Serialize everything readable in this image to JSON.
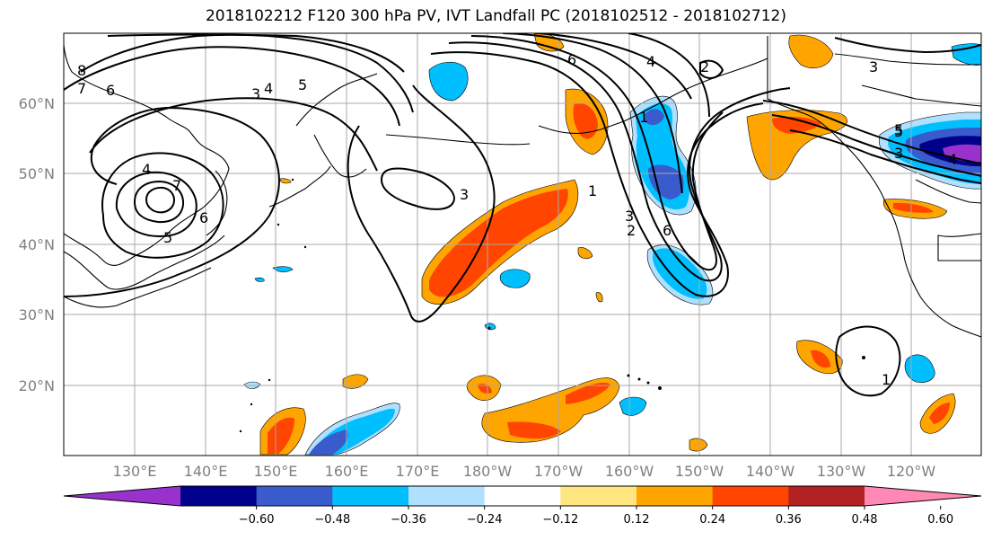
{
  "title": "2018102212 F120 300 hPa PV, IVT Landfall PC (2018102512 - 2018102712)",
  "lat_labels": [
    "60°N",
    "50°N",
    "40°N",
    "30°N",
    "20°N"
  ],
  "lon_labels": [
    "130°E",
    "140°E",
    "150°E",
    "160°E",
    "170°E",
    "180°W",
    "170°W",
    "160°W",
    "150°W",
    "140°W",
    "130°W",
    "120°W"
  ],
  "colorbar": {
    "colors": [
      "#9932cc",
      "#00008b",
      "#3a5bcc",
      "#00bfff",
      "#b0e0ff",
      "#ffffff",
      "#ffe680",
      "#ffa500",
      "#ff4500",
      "#b22222",
      "#ff88b4"
    ],
    "labels": [
      "-0.60",
      "-0.48",
      "-0.36",
      "-0.24",
      "-0.12",
      "0.12",
      "0.24",
      "0.36",
      "0.48",
      "0.60"
    ]
  },
  "contour_labels": [
    "8",
    "7",
    "6",
    "5",
    "4",
    "3",
    "4",
    "5",
    "6",
    "7",
    "5",
    "3",
    "6",
    "4",
    "2",
    "1",
    "3",
    "2",
    "6",
    "5",
    "3",
    "4",
    "1",
    "3",
    "1"
  ]
}
